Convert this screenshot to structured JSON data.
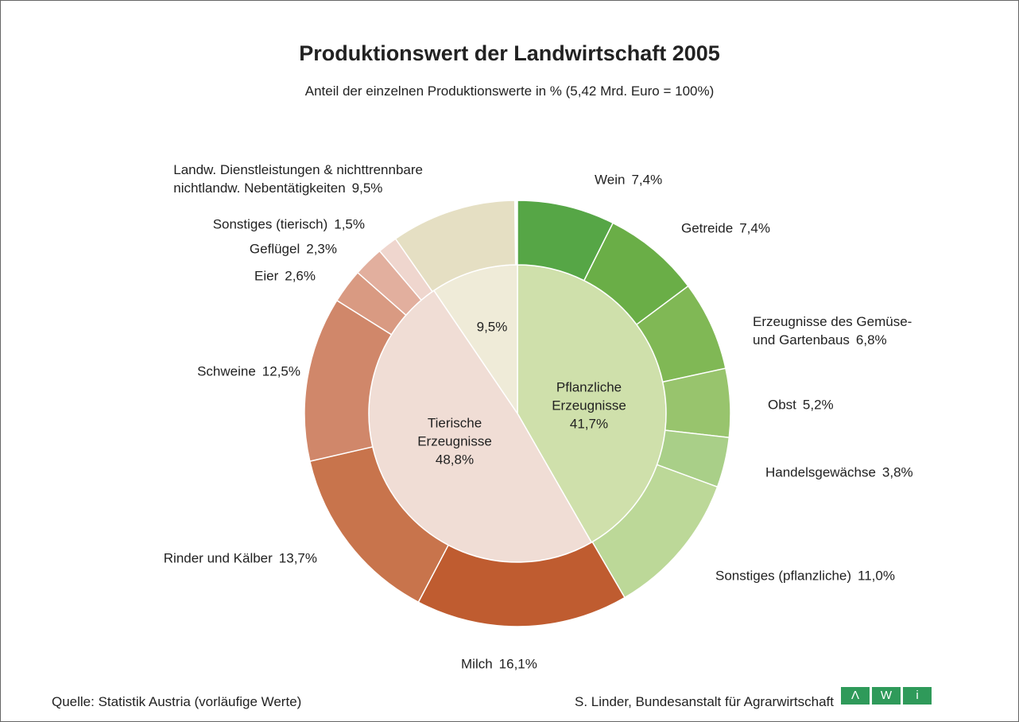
{
  "chart_data": {
    "type": "sunburst",
    "title": "Produktionswert der Landwirtschaft 2005",
    "subtitle": "Anteil der einzelnen Produktionswerte in % (5,42 Mrd. Euro = 100%)",
    "rings": [
      {
        "categories": [
          "Pflanzliche\nErzeugnisse",
          "Tierische\nErzeugnisse",
          null
        ],
        "values": [
          41.7,
          48.8,
          9.5
        ],
        "value_labels": [
          "41,7%",
          "48,8%",
          "9,5%"
        ],
        "colors": [
          "#cfe0ab",
          "#f0ddd5",
          "#efebd8"
        ]
      },
      {
        "categories": [
          "Wein",
          "Getreide",
          "Erzeugnisse des Gemüse-\nund Gartenbaus",
          "Obst",
          "Handelsgewächse",
          "Sonstiges (pflanzliche)",
          "Milch",
          "Rinder und Kälber",
          "Schweine",
          "Eier",
          "Geflügel",
          "Sonstiges (tierisch)",
          "Landw. Dienstleistungen & nichttrennbare\nnichtlandw. Nebentätigkeiten"
        ],
        "values": [
          7.4,
          7.4,
          6.8,
          5.2,
          3.8,
          11.0,
          16.1,
          13.7,
          12.5,
          2.6,
          2.3,
          1.5,
          9.5
        ],
        "value_labels": [
          "7,4%",
          "7,4%",
          "6,8%",
          "5,2%",
          "3,8%",
          "11,0%",
          "16,1%",
          "13,7%",
          "12,5%",
          "2,6%",
          "2,3%",
          "1,5%",
          "9,5%"
        ],
        "colors": [
          "#56a646",
          "#6aae47",
          "#80b855",
          "#98c46d",
          "#a9cf88",
          "#bcd898",
          "#bf5c30",
          "#c8744c",
          "#d0876a",
          "#d99a82",
          "#e2af9e",
          "#efd6ce",
          "#e5dfc3"
        ]
      }
    ],
    "source": "Quelle: Statistik Austria (vorläufige Werte)",
    "author": "S. Linder, Bundesanstalt für Agrarwirtschaft",
    "logo": [
      "Λ",
      "W",
      "i"
    ]
  }
}
